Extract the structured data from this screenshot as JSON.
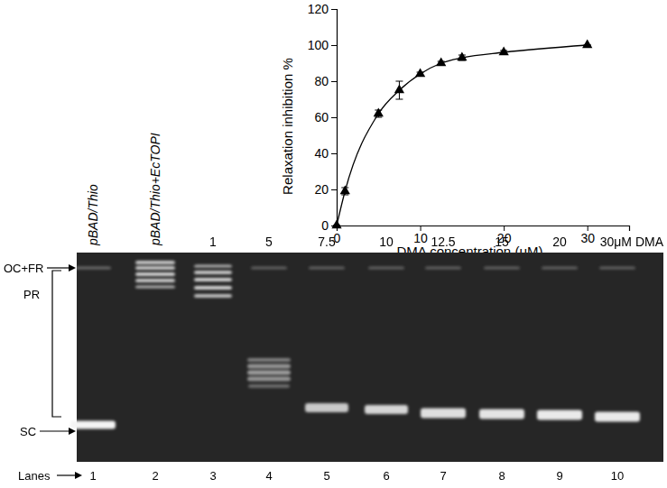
{
  "chart_data": {
    "type": "line",
    "x_label": "DMA concentration (μM)",
    "y_label": "Relaxation inhibition %",
    "x": [
      0,
      1,
      5,
      7.5,
      10,
      12.5,
      15,
      20,
      30
    ],
    "values": [
      0,
      19,
      62,
      75,
      84,
      90,
      93,
      96,
      100
    ],
    "errors": [
      0,
      2,
      2,
      5,
      1,
      1,
      1.5,
      1,
      0
    ],
    "color": "#000000",
    "marker": "triangle",
    "line_style": "solid",
    "xlim": [
      0,
      35
    ],
    "xticks": [
      0,
      10,
      20,
      30
    ],
    "ylim": [
      0,
      120
    ],
    "yticks": [
      0,
      20,
      40,
      60,
      80,
      100,
      120
    ],
    "grid": false
  },
  "gel": {
    "lane_headers": [
      "pBAD/Thio",
      "pBAD/Thio+EcTOPI",
      "1",
      "5",
      "7.5",
      "10",
      "12.5",
      "15",
      "20",
      "30μM DMA"
    ],
    "band_labels": {
      "top": "OC+FR",
      "middle": "PR",
      "bottom": "SC"
    },
    "lanes_label": "Lanes",
    "lane_numbers": [
      1,
      2,
      3,
      4,
      5,
      6,
      7,
      8,
      9,
      10
    ]
  }
}
